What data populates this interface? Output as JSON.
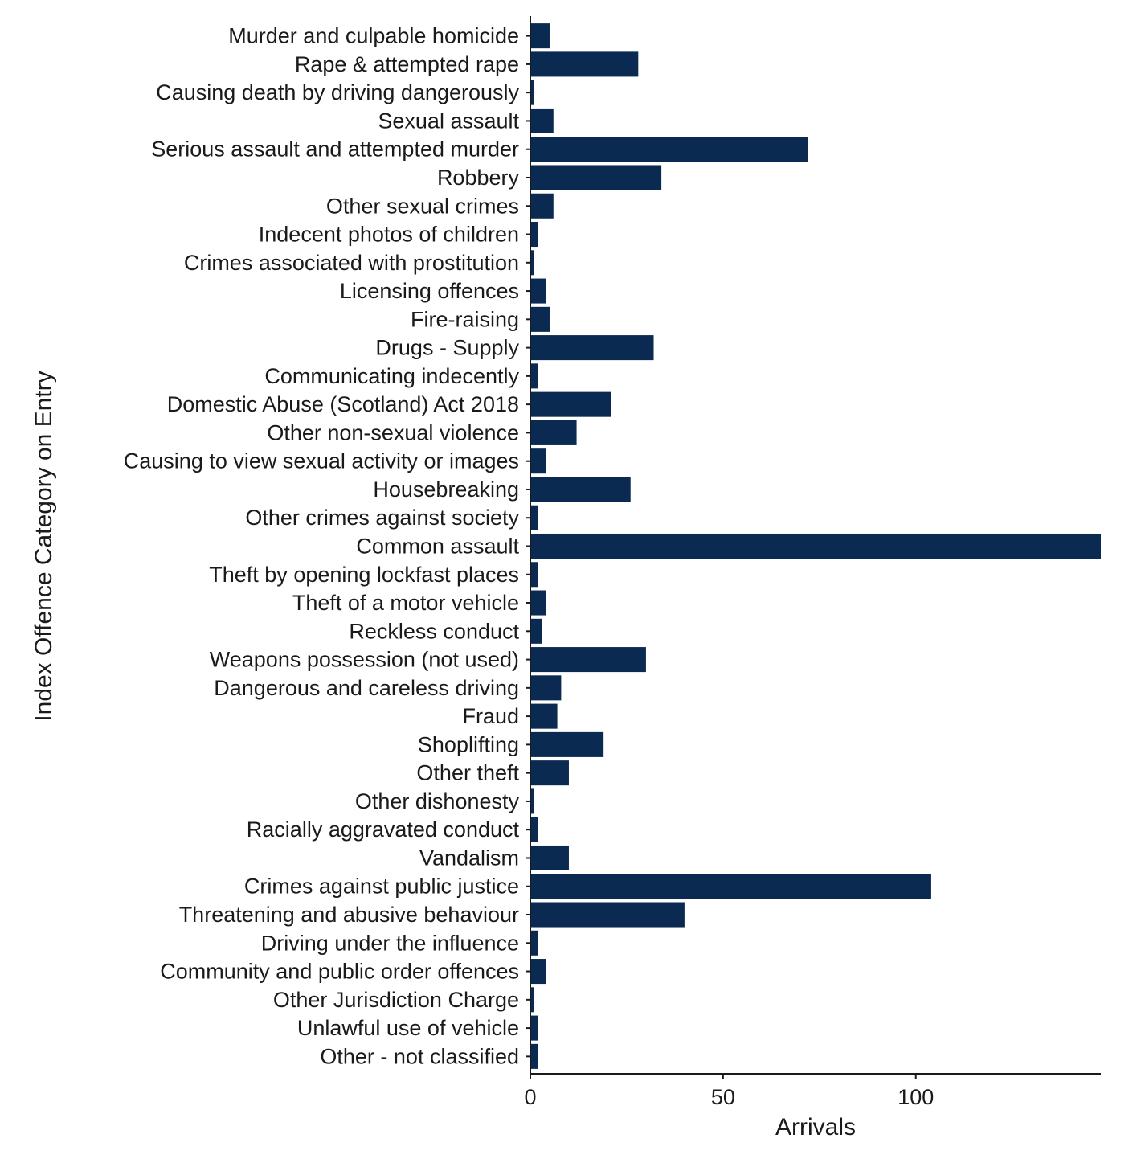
{
  "chart_data": {
    "type": "bar",
    "orientation": "horizontal",
    "xlabel": "Arrivals",
    "ylabel": "Index Offence Category on Entry",
    "xlim": [
      0,
      148
    ],
    "x_ticks": [
      0,
      50,
      100
    ],
    "bar_color": "#0b2a52",
    "grid": false,
    "categories": [
      "Murder and culpable homicide",
      "Rape & attempted rape",
      "Causing death by driving dangerously",
      "Sexual assault",
      "Serious assault and attempted murder",
      "Robbery",
      "Other sexual crimes",
      "Indecent photos of children",
      "Crimes associated with prostitution",
      "Licensing offences",
      "Fire-raising",
      "Drugs - Supply",
      "Communicating indecently",
      "Domestic Abuse (Scotland) Act 2018",
      "Other non-sexual violence",
      "Causing to view sexual activity or images",
      "Housebreaking",
      "Other crimes against society",
      "Common assault",
      "Theft by opening lockfast places",
      "Theft of a motor vehicle",
      "Reckless conduct",
      "Weapons possession (not used)",
      "Dangerous and careless driving",
      "Fraud",
      "Shoplifting",
      "Other theft",
      "Other dishonesty",
      "Racially aggravated conduct",
      "Vandalism",
      "Crimes against public justice",
      "Threatening and abusive behaviour",
      "Driving under the influence",
      "Community and public order offences",
      "Other Jurisdiction Charge",
      "Unlawful use of vehicle",
      "Other - not classified"
    ],
    "values": [
      5,
      28,
      1,
      6,
      72,
      34,
      6,
      2,
      1,
      4,
      5,
      32,
      2,
      21,
      12,
      4,
      26,
      2,
      148,
      2,
      4,
      3,
      30,
      8,
      7,
      19,
      10,
      1,
      2,
      10,
      104,
      40,
      2,
      4,
      1,
      2,
      2
    ]
  }
}
